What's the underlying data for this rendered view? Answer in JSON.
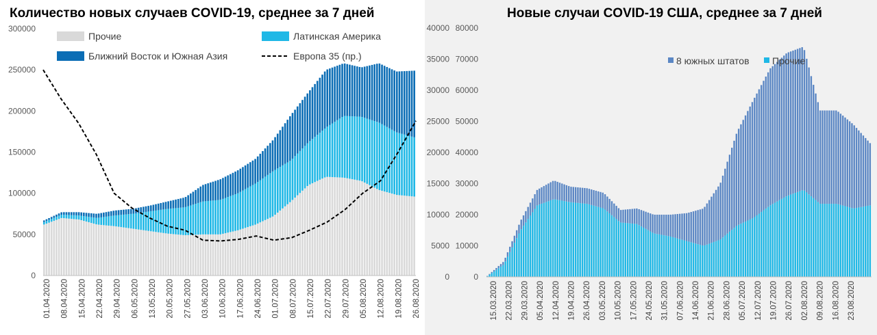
{
  "chart_data": [
    {
      "type": "bar",
      "title": "Количество новых случаев COVID-19, среднее за 7 дней",
      "stacked": true,
      "ylim": [
        0,
        300000
      ],
      "yticks": [
        "0",
        "50000",
        "100000",
        "150000",
        "200000",
        "250000",
        "300000"
      ],
      "secondary_axis": "Европа 35 (пр.)",
      "legend": [
        {
          "name": "Прочие",
          "color": "#d9d9d9"
        },
        {
          "name": "Латинская Америка",
          "color": "#1fb8e6"
        },
        {
          "name": "Ближний Восток и Южная Азия",
          "color": "#0b6db5"
        },
        {
          "name": "Европа 35 (пр.)",
          "color": "#000000",
          "style": "dashed"
        }
      ],
      "x_tick_labels": [
        "01.04.2020",
        "08.04.2020",
        "15.04.2020",
        "22.04.2020",
        "29.04.2020",
        "06.05.2020",
        "13.05.2020",
        "20.05.2020",
        "27.05.2020",
        "03.06.2020",
        "10.06.2020",
        "17.06.2020",
        "24.06.2020",
        "01.07.2020",
        "08.07.2020",
        "15.07.2020",
        "22.07.2020",
        "29.07.2020",
        "05.08.2020",
        "12.08.2020",
        "19.08.2020",
        "26.08.2020"
      ],
      "series": [
        {
          "name": "Прочие",
          "color": "#d9d9d9",
          "values": [
            62000,
            70000,
            68000,
            62000,
            60000,
            57000,
            54000,
            51000,
            49000,
            50000,
            50000,
            55000,
            62000,
            72000,
            90000,
            110000,
            120000,
            119000,
            115000,
            104000,
            98000,
            96000
          ]
        },
        {
          "name": "Латинская Америка",
          "color": "#1fb8e6",
          "values": [
            3000,
            4000,
            5000,
            8000,
            13000,
            18000,
            24000,
            30000,
            34000,
            40000,
            42000,
            45000,
            50000,
            55000,
            50000,
            52000,
            60000,
            75000,
            78000,
            82000,
            76000,
            72000
          ]
        },
        {
          "name": "Ближний Восток и Южная Азия",
          "color": "#0b6db5",
          "values": [
            2000,
            3000,
            4000,
            5000,
            6000,
            6000,
            7000,
            9000,
            12000,
            20000,
            25000,
            28000,
            30000,
            38000,
            55000,
            61000,
            70000,
            64000,
            60000,
            72000,
            74000,
            81000
          ]
        },
        {
          "name": "Европа 35 (пр.)",
          "axis": "secondary",
          "values": [
            250000,
            215000,
            185000,
            147000,
            100000,
            82000,
            70000,
            60000,
            55000,
            43000,
            42000,
            44000,
            48000,
            43000,
            46000,
            55000,
            65000,
            80000,
            100000,
            115000,
            150000,
            188000
          ]
        }
      ]
    },
    {
      "type": "bar",
      "title": "Новые случаи COVID-19  США, среднее за 7 дней",
      "stacked": true,
      "ylim": [
        0,
        80000
      ],
      "yticks": [
        "0",
        "10000",
        "20000",
        "30000",
        "40000",
        "50000",
        "60000",
        "70000",
        "80000"
      ],
      "yticks_secondary": [
        "0",
        "5000",
        "10000",
        "15000",
        "20000",
        "25000",
        "30000",
        "35000",
        "40000"
      ],
      "legend": [
        {
          "name": "8 южных штатов",
          "color": "#5b87c4"
        },
        {
          "name": "Прочие",
          "color": "#1fb8e6"
        }
      ],
      "x_tick_labels": [
        "15.03.2020",
        "22.03.2020",
        "29.03.2020",
        "05.04.2020",
        "12.04.2020",
        "19.04.2020",
        "26.04.2020",
        "03.05.2020",
        "10.05.2020",
        "17.05.2020",
        "24.05.2020",
        "31.05.2020",
        "07.06.2020",
        "14.06.2020",
        "21.06.2020",
        "28.06.2020",
        "05.07.2020",
        "12.07.2020",
        "19.07.2020",
        "26.07.2020",
        "02.08.2020",
        "09.08.2020",
        "16.08.2020",
        "23.08.2020"
      ],
      "series": [
        {
          "name": "Прочие",
          "color": "#1fb8e6",
          "values": [
            200,
            4000,
            15000,
            23000,
            25000,
            24000,
            23500,
            22000,
            17500,
            17000,
            14000,
            13000,
            11500,
            10000,
            12000,
            16500,
            19000,
            23000,
            26000,
            28000,
            23500,
            23500,
            22000,
            23000
          ]
        },
        {
          "name": "8 южных штатов",
          "color": "#5b87c4",
          "values": [
            100,
            1000,
            3000,
            5000,
            6000,
            5000,
            5000,
            5000,
            4000,
            5000,
            6000,
            7000,
            9000,
            12000,
            18000,
            30000,
            38000,
            44000,
            46000,
            46000,
            30000,
            30000,
            27000,
            20000
          ]
        }
      ]
    }
  ]
}
